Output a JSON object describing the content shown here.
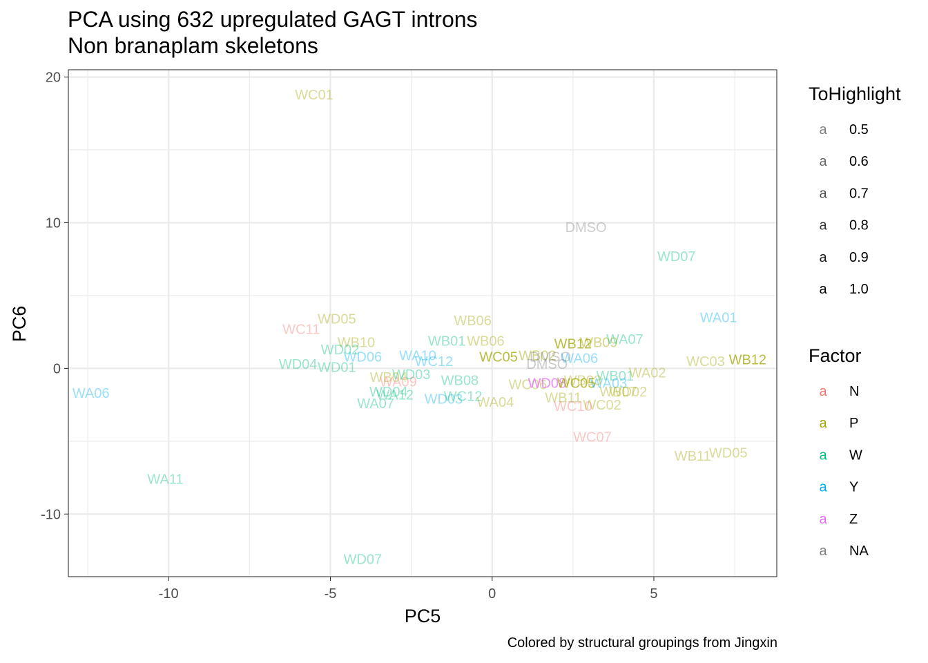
{
  "chart_data": {
    "type": "scatter",
    "title": "PCA using 632 upregulated GAGT introns",
    "subtitle": "Non branaplam skeletons",
    "caption": "Colored by structural groupings from Jingxin",
    "xlabel": "PC5",
    "ylabel": "PC6",
    "xlim": [
      -13.1,
      8.8
    ],
    "ylim": [
      -14.3,
      20.5
    ],
    "xticks": [
      "-10",
      "-5",
      "0",
      "5"
    ],
    "xtick_values": [
      -10,
      -5,
      0,
      5
    ],
    "yticks": [
      "-10",
      "0",
      "10",
      "20"
    ],
    "ytick_values": [
      -10,
      0,
      10,
      20
    ],
    "grid": true,
    "legend_position": "right",
    "legends": {
      "alpha": {
        "title": "ToHighlight",
        "key_glyph": "a",
        "entries": [
          {
            "label": "0.5",
            "alpha": 0.5
          },
          {
            "label": "0.6",
            "alpha": 0.6
          },
          {
            "label": "0.7",
            "alpha": 0.7
          },
          {
            "label": "0.8",
            "alpha": 0.8
          },
          {
            "label": "0.9",
            "alpha": 0.9
          },
          {
            "label": "1.0",
            "alpha": 1.0
          }
        ]
      },
      "color": {
        "title": "Factor",
        "key_glyph": "a",
        "entries": [
          {
            "label": "N",
            "color": "#F8766D"
          },
          {
            "label": "P",
            "color": "#A3A500"
          },
          {
            "label": "W",
            "color": "#00BF7D"
          },
          {
            "label": "Y",
            "color": "#00B0F6"
          },
          {
            "label": "Z",
            "color": "#E76BF3"
          },
          {
            "label": "NA",
            "color": "#7F7F7F"
          }
        ]
      }
    },
    "points": [
      {
        "label": "WC01",
        "x": -5.5,
        "y": 18.8,
        "factor": "P",
        "alpha": 0.5
      },
      {
        "label": "DMSO",
        "x": 2.9,
        "y": 9.7,
        "factor": "NA",
        "alpha": 0.5
      },
      {
        "label": "WD07",
        "x": 5.7,
        "y": 7.7,
        "factor": "W",
        "alpha": 0.5
      },
      {
        "label": "WA01",
        "x": 7.0,
        "y": 3.5,
        "factor": "Y",
        "alpha": 0.5
      },
      {
        "label": "WC11",
        "x": -5.9,
        "y": 2.7,
        "factor": "N",
        "alpha": 0.5
      },
      {
        "label": "WD05",
        "x": -4.8,
        "y": 3.4,
        "factor": "P",
        "alpha": 0.5
      },
      {
        "label": "WB06",
        "x": -0.6,
        "y": 3.3,
        "factor": "P",
        "alpha": 0.5
      },
      {
        "label": "WB12",
        "x": 2.5,
        "y": 1.7,
        "factor": "P",
        "alpha": 1.0
      },
      {
        "label": "WB09",
        "x": 3.3,
        "y": 1.8,
        "factor": "P",
        "alpha": 0.6
      },
      {
        "label": "WA07",
        "x": 4.1,
        "y": 2.0,
        "factor": "W",
        "alpha": 0.5
      },
      {
        "label": "WB12",
        "x": 7.9,
        "y": 0.6,
        "factor": "P",
        "alpha": 1.0
      },
      {
        "label": "WC03",
        "x": 6.6,
        "y": 0.5,
        "factor": "P",
        "alpha": 0.5
      },
      {
        "label": "WB10",
        "x": -4.2,
        "y": 1.8,
        "factor": "P",
        "alpha": 0.5
      },
      {
        "label": "WD02",
        "x": -4.7,
        "y": 1.3,
        "factor": "W",
        "alpha": 0.5
      },
      {
        "label": "WB01",
        "x": -1.4,
        "y": 1.9,
        "factor": "W",
        "alpha": 0.5
      },
      {
        "label": "WB06",
        "x": -0.2,
        "y": 1.9,
        "factor": "P",
        "alpha": 0.5
      },
      {
        "label": "WD06",
        "x": -4.0,
        "y": 0.8,
        "factor": "Y",
        "alpha": 0.5
      },
      {
        "label": "WA10",
        "x": -2.3,
        "y": 0.9,
        "factor": "Y",
        "alpha": 0.5
      },
      {
        "label": "WC12",
        "x": -1.8,
        "y": 0.5,
        "factor": "Y",
        "alpha": 0.5
      },
      {
        "label": "WC05",
        "x": 0.2,
        "y": 0.8,
        "factor": "P",
        "alpha": 1.0
      },
      {
        "label": "WB02",
        "x": 1.4,
        "y": 0.9,
        "factor": "P",
        "alpha": 0.6
      },
      {
        "label": "DMSO",
        "x": 1.8,
        "y": 0.8,
        "factor": "NA",
        "alpha": 0.5
      },
      {
        "label": "WA06",
        "x": 2.7,
        "y": 0.7,
        "factor": "Y",
        "alpha": 0.5
      },
      {
        "label": "DMSO",
        "x": 1.7,
        "y": 0.3,
        "factor": "NA",
        "alpha": 0.5
      },
      {
        "label": "WD04",
        "x": -6.0,
        "y": 0.3,
        "factor": "W",
        "alpha": 0.5
      },
      {
        "label": "WD01",
        "x": -4.8,
        "y": 0.1,
        "factor": "W",
        "alpha": 0.5
      },
      {
        "label": "WB01",
        "x": 3.8,
        "y": -0.5,
        "factor": "W",
        "alpha": 0.5
      },
      {
        "label": "WA02",
        "x": 4.8,
        "y": -0.3,
        "factor": "P",
        "alpha": 0.5
      },
      {
        "label": "WA06",
        "x": -12.4,
        "y": -1.7,
        "factor": "Y",
        "alpha": 0.5
      },
      {
        "label": "WB04",
        "x": -3.2,
        "y": -0.6,
        "factor": "P",
        "alpha": 0.5
      },
      {
        "label": "WA09",
        "x": -2.9,
        "y": -0.9,
        "factor": "N",
        "alpha": 0.5
      },
      {
        "label": "WD03",
        "x": -2.5,
        "y": -0.4,
        "factor": "W",
        "alpha": 0.5
      },
      {
        "label": "WB08",
        "x": -1.0,
        "y": -0.8,
        "factor": "W",
        "alpha": 0.5
      },
      {
        "label": "WC06",
        "x": 1.1,
        "y": -1.1,
        "factor": "P",
        "alpha": 0.5
      },
      {
        "label": "WD08",
        "x": 1.7,
        "y": -1.0,
        "factor": "Z",
        "alpha": 1.0
      },
      {
        "label": "WC05",
        "x": 2.6,
        "y": -1.0,
        "factor": "P",
        "alpha": 1.0
      },
      {
        "label": "WA03",
        "x": 3.6,
        "y": -1.0,
        "factor": "Y",
        "alpha": 0.5
      },
      {
        "label": "WB03",
        "x": 2.8,
        "y": -0.8,
        "factor": "P",
        "alpha": 0.5
      },
      {
        "label": "WD04",
        "x": -3.2,
        "y": -1.6,
        "factor": "W",
        "alpha": 0.5
      },
      {
        "label": "WA12",
        "x": -3.0,
        "y": -1.8,
        "factor": "W",
        "alpha": 0.5
      },
      {
        "label": "WD03",
        "x": -1.5,
        "y": -2.1,
        "factor": "Y",
        "alpha": 0.5
      },
      {
        "label": "WC12",
        "x": -0.9,
        "y": -1.9,
        "factor": "W",
        "alpha": 0.5
      },
      {
        "label": "WA04",
        "x": 0.1,
        "y": -2.3,
        "factor": "P",
        "alpha": 0.5
      },
      {
        "label": "WB11",
        "x": 2.2,
        "y": -2.0,
        "factor": "P",
        "alpha": 0.5
      },
      {
        "label": "WD02",
        "x": 4.2,
        "y": -1.6,
        "factor": "P",
        "alpha": 0.5
      },
      {
        "label": "WC02",
        "x": 3.4,
        "y": -2.5,
        "factor": "P",
        "alpha": 0.5
      },
      {
        "label": "WC10",
        "x": 2.5,
        "y": -2.6,
        "factor": "N",
        "alpha": 0.5
      },
      {
        "label": "WB07",
        "x": 3.9,
        "y": -1.6,
        "factor": "P",
        "alpha": 0.5
      },
      {
        "label": "WA07",
        "x": -3.6,
        "y": -2.4,
        "factor": "W",
        "alpha": 0.5
      },
      {
        "label": "WC07",
        "x": 3.1,
        "y": -4.7,
        "factor": "N",
        "alpha": 0.5
      },
      {
        "label": "WB11",
        "x": 6.2,
        "y": -6.0,
        "factor": "P",
        "alpha": 0.5
      },
      {
        "label": "WD05",
        "x": 7.3,
        "y": -5.8,
        "factor": "P",
        "alpha": 0.5
      },
      {
        "label": "WA11",
        "x": -10.1,
        "y": -7.6,
        "factor": "W",
        "alpha": 0.5
      },
      {
        "label": "WD07",
        "x": -4.0,
        "y": -13.1,
        "factor": "W",
        "alpha": 0.5
      }
    ]
  }
}
